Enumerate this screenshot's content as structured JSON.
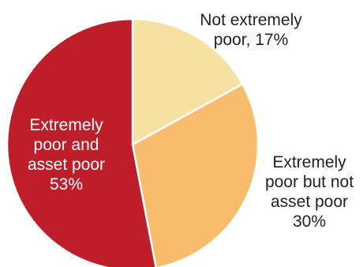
{
  "chart_data": {
    "type": "pie",
    "title": "",
    "slices": [
      {
        "label_lines": [
          "Not extremely",
          "poor, 17%"
        ],
        "value": 17,
        "color": "#f6e0a2",
        "label_color": "#222222"
      },
      {
        "label_lines": [
          "Extremely",
          "poor but not",
          "asset poor",
          "30%"
        ],
        "value": 30,
        "color": "#f8bc6c",
        "label_color": "#222222"
      },
      {
        "label_lines": [
          "Extremely",
          "poor and",
          "asset poor",
          "53%"
        ],
        "value": 53,
        "color": "#be1e2a",
        "label_color": "#ffffff"
      }
    ],
    "start_angle_deg": 0,
    "direction": "clockwise",
    "border_color": "#ffffff"
  }
}
